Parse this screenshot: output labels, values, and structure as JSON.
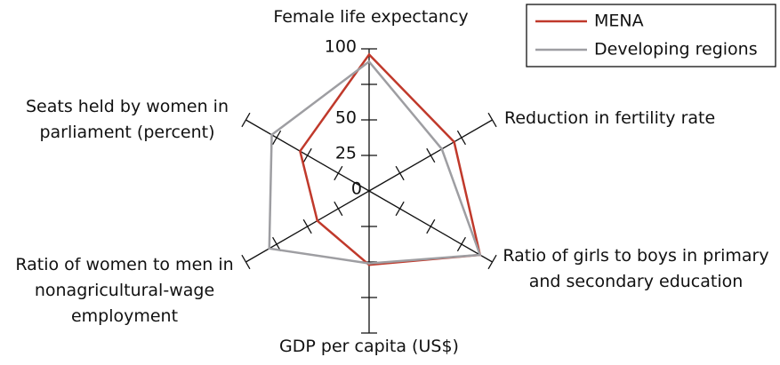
{
  "chart_data": {
    "type": "radar",
    "categories": [
      "Female life expectancy",
      "Reduction in fertility rate",
      "Ratio of girls to boys in primary and secondary education",
      "GDP per capita (US$)",
      "Ratio of women to men in nonagricultural-wage employment",
      "Seats held by women in parliament (percent)"
    ],
    "series": [
      {
        "name": "MENA",
        "color": "#c0392b",
        "values": [
          96,
          69,
          90,
          52,
          42,
          56
        ]
      },
      {
        "name": "Developing regions",
        "color": "#9e9ea2",
        "values": [
          91,
          59,
          90,
          51,
          81,
          79
        ]
      }
    ],
    "ylim": [
      0,
      100
    ],
    "yticks": [
      0,
      25,
      50,
      {
        "value": 75,
        "label": null
      },
      100
    ],
    "legend": "upper right"
  }
}
